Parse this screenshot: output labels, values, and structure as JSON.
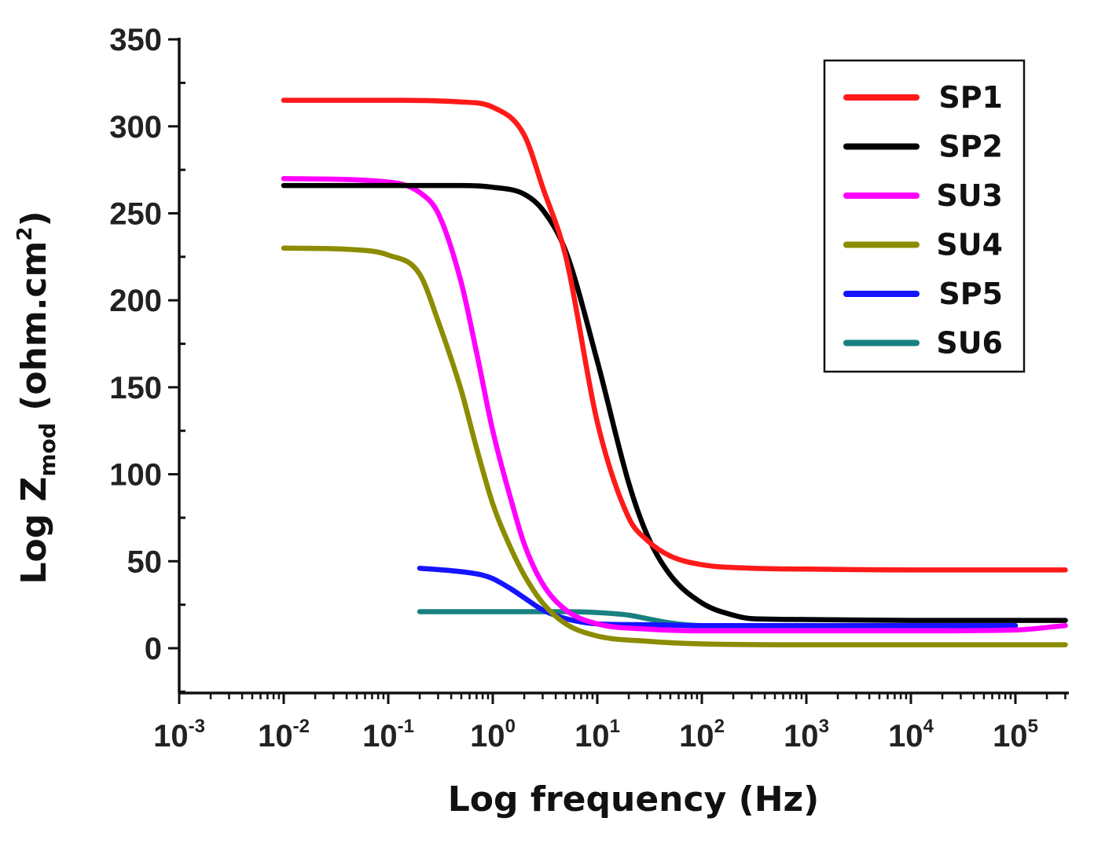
{
  "chart_data": {
    "type": "line",
    "title": "",
    "xlabel": "Log frequency (Hz)",
    "ylabel": {
      "prefix": "Log Z",
      "subscript": "mod",
      "unit_open": " (ohm.cm",
      "superscript": "2",
      "unit_close": ")"
    },
    "xscale": "log",
    "xlim": [
      0.001,
      300000
    ],
    "ylim": [
      -25,
      350
    ],
    "x_ticks": [
      {
        "base": "10",
        "exp": "-3"
      },
      {
        "base": "10",
        "exp": "-2"
      },
      {
        "base": "10",
        "exp": "-1"
      },
      {
        "base": "10",
        "exp": "0"
      },
      {
        "base": "10",
        "exp": "1"
      },
      {
        "base": "10",
        "exp": "2"
      },
      {
        "base": "10",
        "exp": "3"
      },
      {
        "base": "10",
        "exp": "4"
      },
      {
        "base": "10",
        "exp": "5"
      }
    ],
    "y_ticks": [
      "0",
      "50",
      "100",
      "150",
      "200",
      "250",
      "300",
      "350"
    ],
    "legend_position": "top-right",
    "series": [
      {
        "name": "SP1",
        "color": "#ff1a1a",
        "x": [
          0.01,
          0.1,
          0.5,
          1,
          2,
          3,
          5,
          10,
          20,
          30,
          50,
          100,
          300,
          1000,
          10000,
          100000,
          300000
        ],
        "y": [
          315,
          315,
          314,
          311,
          295,
          265,
          225,
          130,
          75,
          62,
          53,
          48,
          46,
          45.5,
          45,
          45,
          45
        ]
      },
      {
        "name": "SP2",
        "color": "#000000",
        "x": [
          0.01,
          0.1,
          0.5,
          1,
          2,
          3,
          5,
          10,
          20,
          30,
          50,
          100,
          200,
          300,
          1000,
          10000,
          100000,
          300000
        ],
        "y": [
          266,
          266,
          266,
          265,
          261,
          252,
          228,
          165,
          95,
          65,
          42,
          26,
          19,
          17,
          16.5,
          16,
          16,
          16
        ]
      },
      {
        "name": "SU3",
        "color": "#ff00ff",
        "x": [
          0.01,
          0.1,
          0.2,
          0.3,
          0.5,
          0.7,
          1,
          1.5,
          2,
          3,
          5,
          10,
          30,
          100,
          1000,
          10000,
          100000,
          300000
        ],
        "y": [
          270,
          268,
          262,
          250,
          210,
          170,
          125,
          85,
          60,
          37,
          22,
          14,
          11,
          10,
          10,
          10,
          10.5,
          13
        ]
      },
      {
        "name": "SU4",
        "color": "#8c8c00",
        "x": [
          0.01,
          0.05,
          0.1,
          0.2,
          0.3,
          0.5,
          0.7,
          1,
          1.5,
          2,
          3,
          5,
          10,
          30,
          100,
          1000,
          10000,
          100000,
          300000
        ],
        "y": [
          230,
          229,
          226,
          215,
          188,
          148,
          115,
          83,
          57,
          42,
          26,
          14,
          7,
          4,
          2.5,
          2,
          2,
          2,
          2
        ]
      },
      {
        "name": "SP5",
        "color": "#1414ff",
        "x": [
          0.2,
          0.5,
          0.8,
          1,
          1.5,
          2,
          3,
          5,
          10,
          30,
          100,
          1000,
          10000,
          100000
        ],
        "y": [
          46,
          44,
          42,
          40,
          34,
          29,
          22,
          17,
          14,
          13.5,
          13,
          13,
          13,
          13
        ]
      },
      {
        "name": "SU6",
        "color": "#198080",
        "x": [
          0.2,
          1,
          3,
          5,
          10,
          20,
          30,
          50,
          70,
          100,
          1000,
          10000,
          100000
        ],
        "y": [
          21,
          21,
          21,
          21,
          20.5,
          19,
          17,
          14.5,
          13.5,
          13,
          13,
          13,
          13
        ]
      }
    ]
  }
}
